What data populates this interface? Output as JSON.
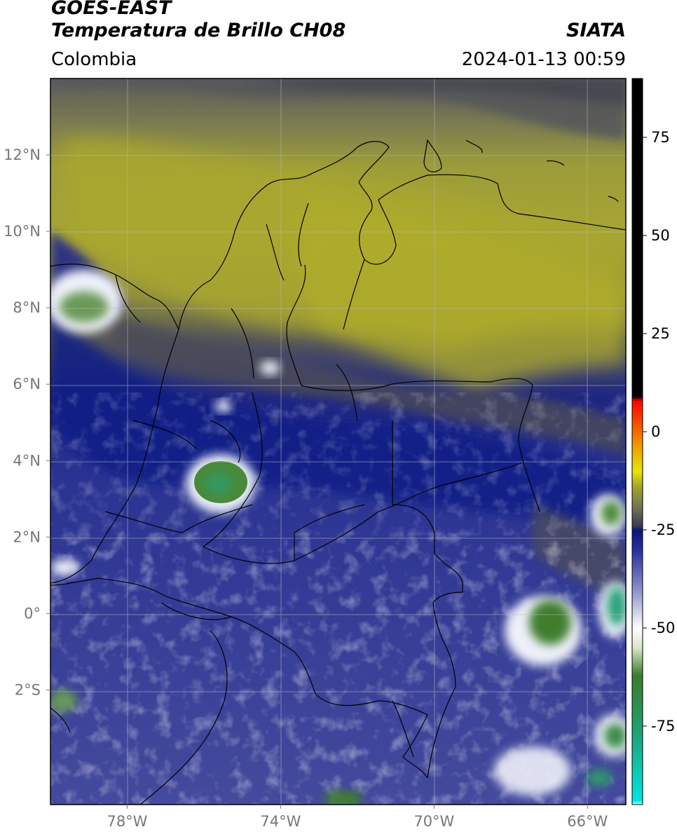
{
  "header": {
    "title_line1": "GOES-EAST",
    "title_line2": "Temperatura de Brillo CH08",
    "organization": "SIATA",
    "region": "Colombia",
    "timestamp": "2024-01-13 00:59"
  },
  "map": {
    "lat_labels": [
      "12°N",
      "10°N",
      "8°N",
      "6°N",
      "4°N",
      "2°N",
      "0°",
      "2°S"
    ],
    "lat_values": [
      12,
      10,
      8,
      6,
      4,
      2,
      0,
      -2
    ],
    "lon_labels": [
      "78°W",
      "74°W",
      "70°W",
      "66°W"
    ],
    "lon_values": [
      -78,
      -74,
      -70,
      -66
    ],
    "extent": {
      "lon_min": -80,
      "lon_max": -65,
      "lat_min": -5,
      "lat_max": 14
    }
  },
  "colorbar": {
    "tick_labels": [
      "75",
      "50",
      "25",
      "0",
      "-25",
      "-50",
      "-75"
    ],
    "tick_values": [
      75,
      50,
      25,
      0,
      -25,
      -50,
      -75
    ],
    "range": [
      -95,
      90
    ],
    "stops": [
      {
        "value": -95,
        "color": "#ffffff"
      },
      {
        "value": -94,
        "color": "#00e5e5"
      },
      {
        "value": -75,
        "color": "#1f9e6a"
      },
      {
        "value": -62,
        "color": "#3a7d2a"
      },
      {
        "value": -55,
        "color": "#d9e6c9"
      },
      {
        "value": -50,
        "color": "#ffffff"
      },
      {
        "value": -40,
        "color": "#8a8fc8"
      },
      {
        "value": -30,
        "color": "#262f9e"
      },
      {
        "value": -25,
        "color": "#0d1477"
      },
      {
        "value": -24,
        "color": "#3a3a4e"
      },
      {
        "value": -20,
        "color": "#6a6a5a"
      },
      {
        "value": -14,
        "color": "#a3a32f"
      },
      {
        "value": -10,
        "color": "#e6e60a"
      },
      {
        "value": -4,
        "color": "#f0a000"
      },
      {
        "value": 8,
        "color": "#ff0000"
      },
      {
        "value": 9,
        "color": "#000000"
      },
      {
        "value": 90,
        "color": "#000000"
      }
    ]
  }
}
